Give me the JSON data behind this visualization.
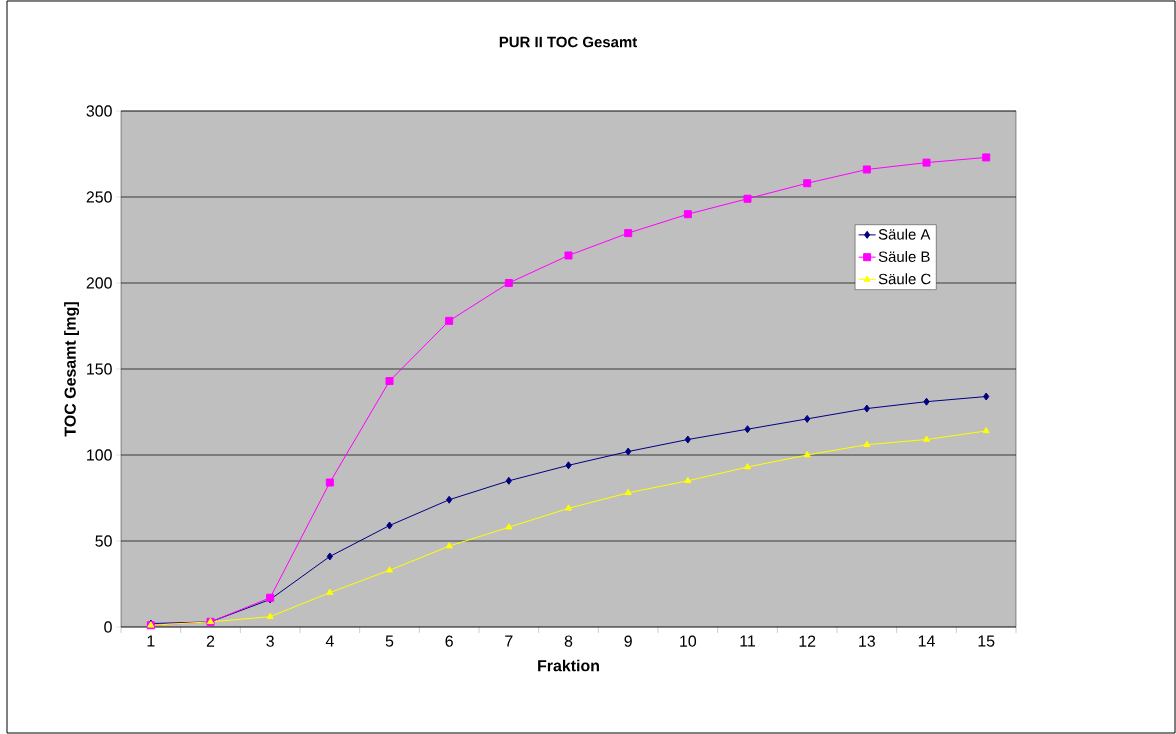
{
  "chart_data": {
    "type": "line",
    "title": "PUR II TOC Gesamt",
    "xlabel": "Fraktion",
    "ylabel": "TOC Gesamt [mg]",
    "categories": [
      "1",
      "2",
      "3",
      "4",
      "5",
      "6",
      "7",
      "8",
      "9",
      "10",
      "11",
      "12",
      "13",
      "14",
      "15"
    ],
    "series": [
      {
        "name": "Säule A",
        "color": "#000080",
        "marker": "diamond",
        "values": [
          2,
          3,
          16,
          41,
          59,
          74,
          85,
          94,
          102,
          109,
          115,
          121,
          127,
          131,
          134
        ]
      },
      {
        "name": "Säule B",
        "color": "#ff00ff",
        "marker": "square",
        "values": [
          1,
          3,
          17,
          84,
          143,
          178,
          200,
          216,
          229,
          240,
          249,
          258,
          266,
          270,
          273
        ]
      },
      {
        "name": "Säule C",
        "color": "#ffff00",
        "marker": "triangle",
        "values": [
          1,
          3,
          6,
          20,
          33,
          47,
          58,
          69,
          78,
          85,
          93,
          100,
          106,
          109,
          114
        ]
      }
    ],
    "ylim": [
      0,
      300
    ],
    "yticks": [
      0,
      50,
      100,
      150,
      200,
      250,
      300
    ],
    "grid": "y",
    "legend": "right"
  }
}
